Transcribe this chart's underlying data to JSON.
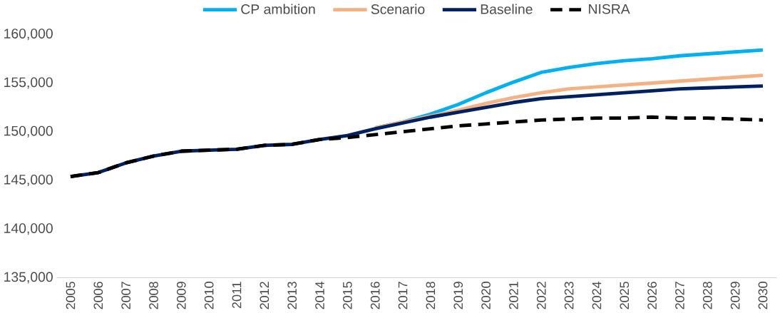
{
  "chart_data": {
    "type": "line",
    "categories": [
      "2005",
      "2006",
      "2007",
      "2008",
      "2009",
      "2010",
      "2011",
      "2012",
      "2013",
      "2014",
      "2015",
      "2016",
      "2017",
      "2018",
      "2019",
      "2020",
      "2021",
      "2022",
      "2023",
      "2024",
      "2025",
      "2026",
      "2027",
      "2028",
      "2029",
      "2030"
    ],
    "series": [
      {
        "name": "CP ambition",
        "color": "#00b0f0",
        "values": [
          null,
          null,
          null,
          null,
          null,
          null,
          null,
          null,
          null,
          null,
          null,
          150400,
          151000,
          151800,
          152800,
          154000,
          155100,
          156100,
          156600,
          157000,
          157300,
          157500,
          157800,
          158000,
          158200,
          158400
        ]
      },
      {
        "name": "Scenario",
        "color": "#f4b183",
        "values": [
          null,
          null,
          null,
          null,
          null,
          null,
          null,
          null,
          null,
          null,
          null,
          150400,
          151000,
          151600,
          152200,
          152900,
          153500,
          154000,
          154400,
          154600,
          154800,
          155000,
          155200,
          155400,
          155600,
          155800
        ]
      },
      {
        "name": "Baseline",
        "color": "#002060",
        "values": [
          145400,
          145800,
          146800,
          147500,
          148000,
          148100,
          148200,
          148600,
          148700,
          149200,
          149600,
          150300,
          150900,
          151500,
          152000,
          152500,
          153000,
          153400,
          153600,
          153800,
          154000,
          154200,
          154400,
          154500,
          154600,
          154700
        ]
      },
      {
        "name": "NISRA",
        "color": "#000000",
        "line_style": "dashed",
        "values": [
          145400,
          145800,
          146800,
          147500,
          148000,
          148100,
          148200,
          148600,
          148700,
          149200,
          149400,
          149700,
          150000,
          150300,
          150600,
          150800,
          151000,
          151200,
          151300,
          151400,
          151400,
          151500,
          151400,
          151400,
          151300,
          151200
        ]
      }
    ],
    "ylim": [
      135000,
      160000
    ],
    "yticks": [
      {
        "value": 135000,
        "label": "135,000"
      },
      {
        "value": 140000,
        "label": "140,000"
      },
      {
        "value": 145000,
        "label": "145,000"
      },
      {
        "value": 150000,
        "label": "150,000"
      },
      {
        "value": 155000,
        "label": "155,000"
      },
      {
        "value": 160000,
        "label": "160,000"
      }
    ],
    "grid": false,
    "legend": "top",
    "line_style": "solid",
    "marker": "none"
  }
}
